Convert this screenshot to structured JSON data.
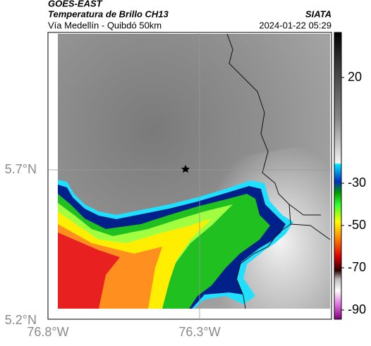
{
  "header": {
    "satellite": "GOES-EAST",
    "product": "Temperatura de Brillo CH13",
    "source": "SIATA",
    "region": "Vía Medellín - Quibdó 50km",
    "timestamp": "2024-01-22 05:29"
  },
  "axes": {
    "lat_labels": [
      "5.7°N",
      "5.2°N"
    ],
    "lon_labels": [
      "76.8°W",
      "76.3°W"
    ]
  },
  "colorbar": {
    "ticks": [
      20,
      -30,
      -50,
      -70,
      -90
    ]
  }
}
